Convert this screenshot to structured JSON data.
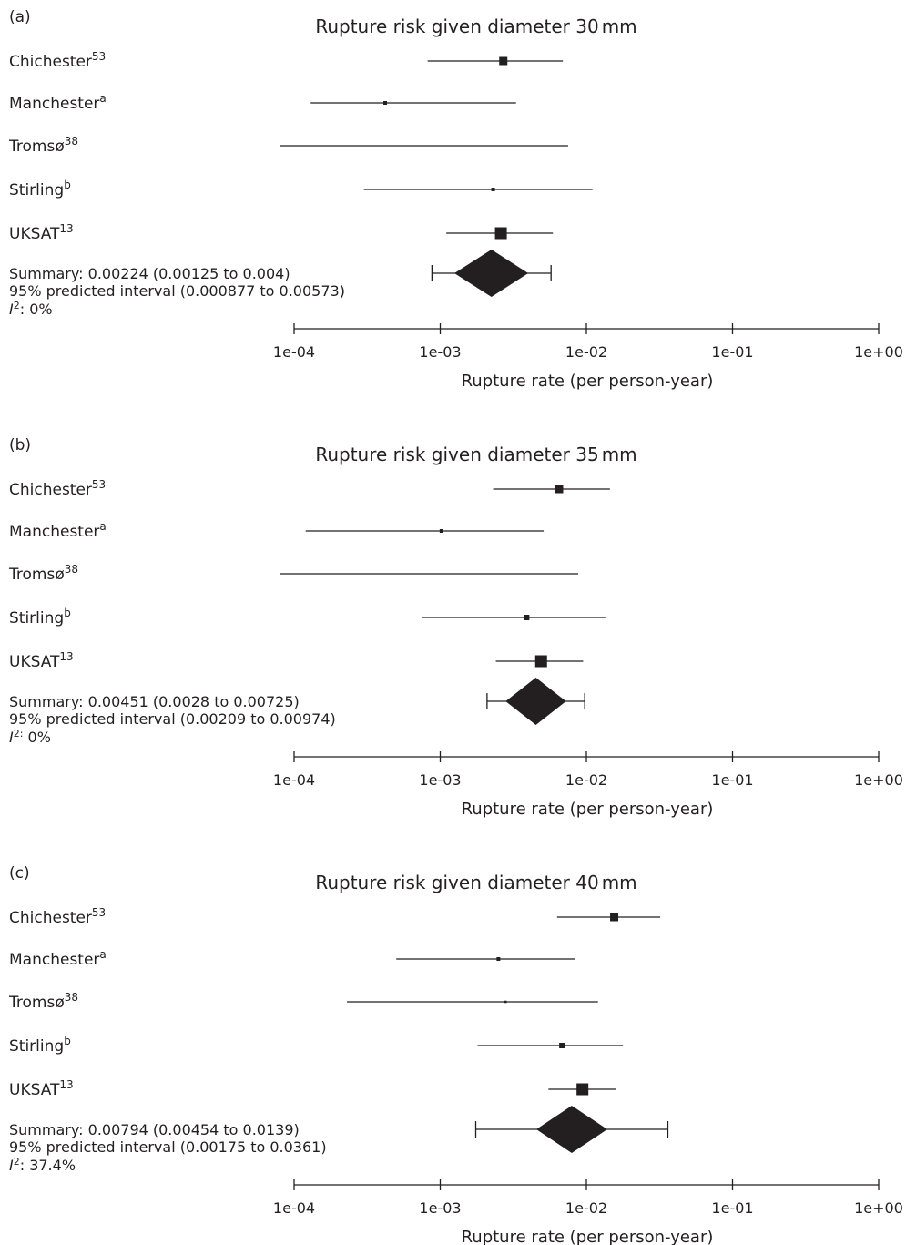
{
  "chart_data": [
    {
      "type": "forest",
      "panel": "(a)",
      "title": "Rupture risk given diameter 30",
      "title_unit": "mm",
      "xlabel": "Rupture rate (per person-year)",
      "x_scale": "log",
      "xlim": [
        0.0001,
        1
      ],
      "x_ticks": [
        "1e-04",
        "1e-03",
        "1e-02",
        "1e-01",
        "1e+00"
      ],
      "studies": [
        {
          "name": "Chichester",
          "sup": "53",
          "estimate": 0.0027,
          "lower": 0.00082,
          "upper": 0.0069,
          "weight": "large"
        },
        {
          "name": "Manchester",
          "sup": "a",
          "estimate": 0.00042,
          "lower": 0.00013,
          "upper": 0.0033,
          "weight": "tiny"
        },
        {
          "name": "Tromsø",
          "sup": "38",
          "estimate": null,
          "lower": 8e-05,
          "upper": 0.0075,
          "weight": "none"
        },
        {
          "name": "Stirling",
          "sup": "b",
          "estimate": 0.0023,
          "lower": 0.0003,
          "upper": 0.011,
          "weight": "tiny"
        },
        {
          "name": "UKSAT",
          "sup": "13",
          "estimate": 0.0026,
          "lower": 0.0011,
          "upper": 0.0059,
          "weight": "xlarge"
        }
      ],
      "summary": {
        "estimate": 0.00224,
        "lower": 0.00125,
        "upper": 0.004,
        "pi_lower": 0.000877,
        "pi_upper": 0.00573
      },
      "summary_text": "Summary: 0.00224 (0.00125 to 0.004)",
      "pi_text": "95% predicted interval (0.000877 to 0.00573)",
      "i2_sup": "2",
      "i2_value": ": 0%"
    },
    {
      "type": "forest",
      "panel": "(b)",
      "title": "Rupture risk given diameter 35",
      "title_unit": "mm",
      "xlabel": "Rupture rate (per person-year)",
      "x_scale": "log",
      "xlim": [
        0.0001,
        1
      ],
      "x_ticks": [
        "1e-04",
        "1e-03",
        "1e-02",
        "1e-01",
        "1e+00"
      ],
      "studies": [
        {
          "name": "Chichester",
          "sup": "53",
          "estimate": 0.0065,
          "lower": 0.0023,
          "upper": 0.0145,
          "weight": "large"
        },
        {
          "name": "Manchester",
          "sup": "a",
          "estimate": 0.00102,
          "lower": 0.00012,
          "upper": 0.0051,
          "weight": "tiny"
        },
        {
          "name": "Tromsø",
          "sup": "38",
          "estimate": null,
          "lower": 8e-05,
          "upper": 0.0088,
          "weight": "none"
        },
        {
          "name": "Stirling",
          "sup": "b",
          "estimate": 0.0039,
          "lower": 0.00075,
          "upper": 0.0135,
          "weight": "small"
        },
        {
          "name": "UKSAT",
          "sup": "13",
          "estimate": 0.0049,
          "lower": 0.0024,
          "upper": 0.0095,
          "weight": "xlarge"
        }
      ],
      "summary": {
        "estimate": 0.00451,
        "lower": 0.0028,
        "upper": 0.00725,
        "pi_lower": 0.00209,
        "pi_upper": 0.00974
      },
      "summary_text": "Summary: 0.00451 (0.0028 to 0.00725)",
      "pi_text": "95% predicted interval (0.00209 to 0.00974)",
      "i2_sup": "2:",
      "i2_value": " 0%"
    },
    {
      "type": "forest",
      "panel": "(c)",
      "title": "Rupture risk given diameter 40",
      "title_unit": "mm",
      "xlabel": "Rupture rate (per person-year)",
      "x_scale": "log",
      "xlim": [
        0.0001,
        1
      ],
      "x_ticks": [
        "1e-04",
        "1e-03",
        "1e-02",
        "1e-01",
        "1e+00"
      ],
      "studies": [
        {
          "name": "Chichester",
          "sup": "53",
          "estimate": 0.0155,
          "lower": 0.0063,
          "upper": 0.032,
          "weight": "large"
        },
        {
          "name": "Manchester",
          "sup": "a",
          "estimate": 0.0025,
          "lower": 0.0005,
          "upper": 0.0083,
          "weight": "tiny"
        },
        {
          "name": "Tromsø",
          "sup": "38",
          "estimate": 0.0028,
          "lower": 0.00023,
          "upper": 0.012,
          "weight": "dot"
        },
        {
          "name": "Stirling",
          "sup": "b",
          "estimate": 0.0068,
          "lower": 0.0018,
          "upper": 0.0178,
          "weight": "small"
        },
        {
          "name": "UKSAT",
          "sup": "13",
          "estimate": 0.0094,
          "lower": 0.0055,
          "upper": 0.016,
          "weight": "xlarge"
        }
      ],
      "summary": {
        "estimate": 0.00794,
        "lower": 0.00454,
        "upper": 0.0139,
        "pi_lower": 0.00175,
        "pi_upper": 0.0361
      },
      "summary_text": "Summary: 0.00794 (0.00454 to 0.0139)",
      "pi_text": "95% predicted interval (0.00175 to 0.0361)",
      "i2_sup": "2",
      "i2_value": ": 37.4%"
    }
  ]
}
